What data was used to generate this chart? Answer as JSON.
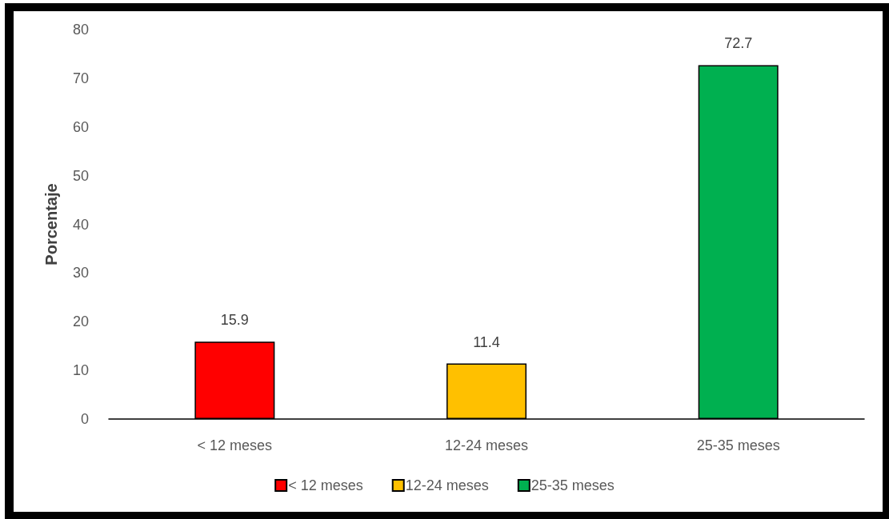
{
  "chart_data": {
    "type": "bar",
    "categories": [
      "< 12 meses",
      "12-24 meses",
      "25-35 meses"
    ],
    "series": [
      {
        "name": "< 12 meses",
        "color": "#ff0000",
        "values": [
          15.9,
          null,
          null
        ]
      },
      {
        "name": "12-24 meses",
        "color": "#ffc000",
        "values": [
          null,
          11.4,
          null
        ]
      },
      {
        "name": "25-35 meses",
        "color": "#00b050",
        "values": [
          null,
          null,
          72.7
        ]
      }
    ],
    "ylabel": "Porcentaje",
    "ylim": [
      0,
      80
    ],
    "yticks": [
      0,
      10,
      20,
      30,
      40,
      50,
      60,
      70,
      80
    ],
    "data_labels": true,
    "grid": false,
    "legend": "bottom"
  }
}
